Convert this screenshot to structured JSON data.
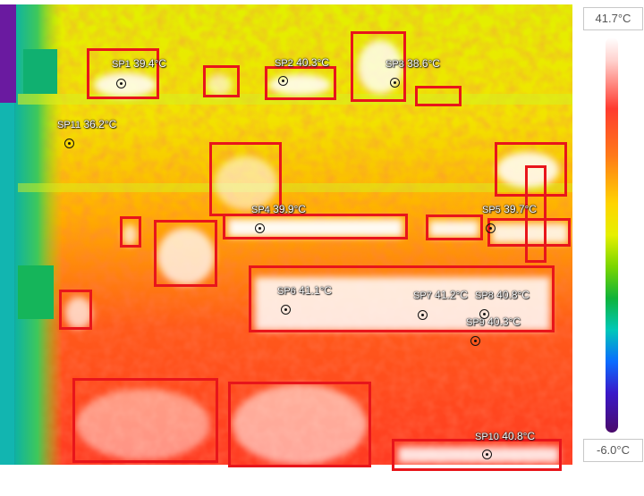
{
  "scale": {
    "max_label": "41.7°C",
    "min_label": "-6.0°C"
  },
  "spots": [
    {
      "name": "SP1",
      "value": "39.4°C"
    },
    {
      "name": "SP2",
      "value": "40.3°C"
    },
    {
      "name": "SP3",
      "value": "38.6°C"
    },
    {
      "name": "SP4",
      "value": "39.9°C"
    },
    {
      "name": "SP5",
      "value": "39.7°C"
    },
    {
      "name": "SP6",
      "value": "41.1°C"
    },
    {
      "name": "SP7",
      "value": "41.2°C"
    },
    {
      "name": "SP8",
      "value": "40.8°C"
    },
    {
      "name": "SP9",
      "value": "40.3°C"
    },
    {
      "name": "SP10",
      "value": "40.8°C"
    },
    {
      "name": "SP11",
      "value": "36.2°C"
    }
  ],
  "colors": {
    "roi": "#e8151b",
    "hot": "#ffffff",
    "warm": "#ff3b2f",
    "mid": "#ffd400",
    "cool": "#7ad600"
  }
}
